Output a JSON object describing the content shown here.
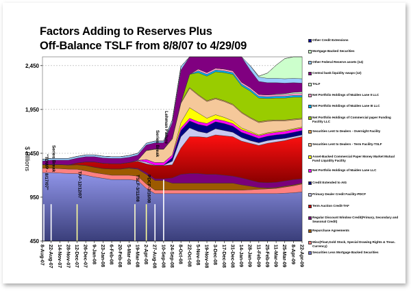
{
  "chart_data": {
    "type": "area",
    "title": "Factors Adding to Reserves Plus Off-Balance TSLF from 8/8/07 to 4/29/09",
    "title_lines": [
      "Factors Adding to Reserves Plus",
      "Off-Balance TSLF from 8/8/07 to 4/29/09"
    ],
    "ylabel": "$ Billions",
    "xlabel": "",
    "ylim": [
      450,
      2550
    ],
    "yticks": [
      450,
      950,
      1450,
      1950,
      2450
    ],
    "ytick_labels": [
      "450",
      "950",
      "1,450",
      "1,950",
      "2,450"
    ],
    "grid": true,
    "legend_position": "right",
    "x_tick_labels": [
      "8-Aug-07",
      "22-Aug-07",
      "14-Nov-07",
      "28-Nov-07",
      "12-Dec-07",
      "26-Dec-07",
      "9-Jan-08",
      "23-Jan-08",
      "6-Feb-08",
      "20-Feb-08",
      "5-Mar-08",
      "19-Mar-08",
      "2-Apr-08",
      "27-Aug-08",
      "10-Sep-08",
      "24-Sep-08",
      "8-Oct-08",
      "22-Oct-08",
      "5-Nov-08",
      "19-Nov-08",
      "3-Dec-08",
      "17-Dec-08",
      "31-Dec-08",
      "14-Jan-09",
      "28-Jan-09",
      "11-Feb-09",
      "25-Feb-09",
      "11-Mar-09",
      "25-Mar-09",
      "8-Apr-09",
      "22-Apr-09"
    ],
    "annotations": [
      {
        "text": "\"TDWP - 8/17/07\"",
        "at": "8-Aug-07"
      },
      {
        "text": "Series Break",
        "at": "22-Aug-07"
      },
      {
        "text": "TAF-12/12/07",
        "at": "12-Dec-07"
      },
      {
        "text": "TSLF-3/11/08",
        "at": "19-Mar-08"
      },
      {
        "text": "PDCF-3/16/08",
        "at": "2-Apr-08"
      },
      {
        "text": "Series Break",
        "at": "27-Aug-08"
      },
      {
        "text": "Lehman Failure",
        "at": "10-Sep-08"
      }
    ],
    "series": [
      {
        "name": "Securities Less Mortgage Backed Securities",
        "color": "#6f74c8",
        "values": [
          780,
          780,
          775,
          770,
          768,
          750,
          730,
          715,
          700,
          700,
          700,
          690,
          600,
          540,
          540,
          540,
          540,
          540,
          540,
          540,
          540,
          540,
          540,
          540,
          540,
          540,
          540,
          540,
          545,
          550,
          560
        ]
      },
      {
        "name": "Misc(Float, Gold Stock, Special Drawing Rights & Treas. Currency)",
        "color": "#ff8080",
        "values": [
          50,
          50,
          50,
          50,
          50,
          50,
          50,
          50,
          50,
          50,
          50,
          50,
          50,
          40,
          40,
          40,
          40,
          40,
          40,
          40,
          40,
          40,
          40,
          40,
          45,
          50,
          55,
          60,
          70,
          80,
          90
        ]
      },
      {
        "name": "Repurchase Agreements",
        "color": "#9c5a00",
        "values": [
          40,
          40,
          45,
          45,
          50,
          60,
          60,
          60,
          70,
          70,
          80,
          80,
          110,
          110,
          110,
          80,
          80,
          80,
          80,
          80,
          80,
          80,
          80,
          60,
          40,
          20,
          10,
          10,
          10,
          10,
          10
        ]
      },
      {
        "name": "Regular Discount Window Credit (Primary, Secondary and Seasonal Credit)",
        "color": "#7a007a",
        "values": [
          2,
          2,
          2,
          2,
          2,
          2,
          2,
          2,
          2,
          2,
          5,
          10,
          20,
          20,
          20,
          60,
          100,
          110,
          110,
          100,
          100,
          90,
          80,
          80,
          70,
          60,
          60,
          60,
          60,
          60,
          50
        ]
      },
      {
        "name": "Term Auction Credit-TAF",
        "color": "#cc0000",
        "values": [
          0,
          0,
          0,
          0,
          20,
          40,
          60,
          60,
          60,
          60,
          60,
          80,
          100,
          150,
          150,
          150,
          300,
          420,
          420,
          420,
          450,
          450,
          450,
          420,
          420,
          420,
          450,
          460,
          460,
          470,
          480
        ]
      },
      {
        "name": "Primary Dealer Credit Facility-PDCF",
        "color": "#c8c8f0",
        "values": [
          0,
          0,
          0,
          0,
          0,
          0,
          0,
          0,
          0,
          0,
          0,
          10,
          20,
          5,
          5,
          40,
          130,
          100,
          60,
          50,
          70,
          60,
          50,
          40,
          30,
          30,
          30,
          30,
          25,
          20,
          20
        ]
      },
      {
        "name": "Credit Extended to AIG",
        "color": "#000080",
        "values": [
          0,
          0,
          0,
          0,
          0,
          0,
          0,
          0,
          0,
          0,
          0,
          0,
          0,
          0,
          0,
          40,
          70,
          80,
          80,
          80,
          80,
          80,
          70,
          60,
          60,
          50,
          50,
          50,
          50,
          50,
          50
        ]
      },
      {
        "name": "Net Portfolio Holdings of Maiden Lane LLC",
        "color": "#ff00ff",
        "values": [
          0,
          0,
          0,
          0,
          0,
          0,
          0,
          0,
          0,
          0,
          0,
          0,
          30,
          30,
          30,
          30,
          30,
          30,
          30,
          30,
          30,
          30,
          30,
          30,
          30,
          30,
          30,
          30,
          30,
          30,
          30
        ]
      },
      {
        "name": "Asset-Backed Commercial Paper Money Market Mutual Fund Liquidity Facility",
        "color": "#ffff00",
        "values": [
          0,
          0,
          0,
          0,
          0,
          0,
          0,
          0,
          0,
          0,
          0,
          0,
          0,
          0,
          0,
          0,
          60,
          120,
          100,
          60,
          50,
          40,
          30,
          20,
          15,
          10,
          10,
          10,
          10,
          10,
          10
        ]
      },
      {
        "name": "Securities Lent to Dealers - Term Facility-TSLF",
        "color": "#f5c89a",
        "values": [
          0,
          0,
          0,
          0,
          0,
          0,
          0,
          0,
          0,
          0,
          0,
          0,
          100,
          150,
          150,
          180,
          220,
          220,
          200,
          190,
          180,
          180,
          180,
          170,
          150,
          140,
          130,
          120,
          110,
          100,
          90
        ]
      },
      {
        "name": "Securities Lent to Dealers - Overnight Facility",
        "color": "#e0a050",
        "values": [
          0,
          0,
          0,
          0,
          0,
          0,
          0,
          0,
          0,
          0,
          0,
          0,
          5,
          5,
          5,
          10,
          10,
          10,
          10,
          10,
          10,
          10,
          10,
          10,
          10,
          10,
          10,
          10,
          10,
          10,
          10
        ]
      },
      {
        "name": "Net Portfolio Holdings of Commercial paper Funding Facility LLC",
        "color": "#99cc00",
        "values": [
          0,
          0,
          0,
          0,
          0,
          0,
          0,
          0,
          0,
          0,
          0,
          0,
          0,
          0,
          0,
          0,
          0,
          150,
          250,
          280,
          300,
          320,
          340,
          300,
          300,
          270,
          250,
          250,
          250,
          250,
          240
        ]
      },
      {
        "name": "Net Portfolio Holdings of Maiden Lane III LLC",
        "color": "#00b0f0",
        "values": [
          0,
          0,
          0,
          0,
          0,
          0,
          0,
          0,
          0,
          0,
          0,
          0,
          0,
          0,
          0,
          0,
          0,
          0,
          20,
          20,
          20,
          20,
          20,
          20,
          20,
          20,
          20,
          20,
          20,
          20,
          20
        ]
      },
      {
        "name": "Net Portfolio Holdings of Maiden Lane II LLC",
        "color": "#ff99cc",
        "values": [
          0,
          0,
          0,
          0,
          0,
          0,
          0,
          0,
          0,
          0,
          0,
          0,
          0,
          0,
          0,
          0,
          0,
          0,
          20,
          20,
          20,
          20,
          20,
          20,
          20,
          20,
          20,
          20,
          20,
          20,
          20
        ]
      },
      {
        "name": "TALF",
        "color": "#ccffcc",
        "values": [
          0,
          0,
          0,
          0,
          0,
          0,
          0,
          0,
          0,
          0,
          0,
          0,
          0,
          0,
          0,
          0,
          0,
          0,
          0,
          0,
          0,
          0,
          0,
          0,
          0,
          0,
          0,
          5,
          10,
          15,
          20
        ]
      },
      {
        "name": "Central bank liquidity swaps (12)",
        "color": "#800080",
        "values": [
          40,
          50,
          50,
          55,
          55,
          60,
          60,
          60,
          60,
          60,
          60,
          60,
          60,
          70,
          70,
          180,
          370,
          540,
          560,
          580,
          560,
          540,
          520,
          360,
          200,
          150,
          140,
          130,
          120,
          110,
          100
        ]
      },
      {
        "name": "Other Federal Reserve assets (14)",
        "color": "#99ccff",
        "values": [
          20,
          20,
          20,
          20,
          20,
          20,
          20,
          20,
          20,
          20,
          20,
          20,
          20,
          20,
          20,
          30,
          40,
          50,
          50,
          50,
          50,
          50,
          50,
          50,
          50,
          50,
          50,
          50,
          50,
          50,
          50
        ]
      },
      {
        "name": "Mortgage Backed Securities",
        "color": "#ccffcc",
        "values": [
          0,
          0,
          0,
          0,
          0,
          0,
          0,
          0,
          0,
          0,
          0,
          0,
          0,
          0,
          0,
          0,
          0,
          0,
          0,
          0,
          0,
          0,
          0,
          0,
          0,
          10,
          60,
          150,
          230,
          300,
          330
        ]
      },
      {
        "name": "Other Credit Extensions",
        "color": "#000099",
        "values": [
          0,
          0,
          0,
          0,
          0,
          0,
          0,
          0,
          0,
          0,
          0,
          0,
          0,
          0,
          0,
          0,
          0,
          0,
          0,
          0,
          0,
          0,
          0,
          0,
          0,
          0,
          0,
          0,
          0,
          0,
          0
        ]
      }
    ]
  },
  "legend": [
    {
      "label": "Other Credit Extensions",
      "color": "#000099"
    },
    {
      "label": "Mortgage Backed Securities",
      "color": "#ccffcc"
    },
    {
      "label": "Other Federal Reserve assets (14)",
      "color": "#99ccff"
    },
    {
      "label": "Central bank liquidity swaps (12)",
      "color": "#800080"
    },
    {
      "label": "TALF",
      "color": "#ccffcc"
    },
    {
      "label": "Net Portfolio Holdings of Maiden Lane II LLC",
      "color": "#ff99cc"
    },
    {
      "label": "Net Portfolio Holdings of Maiden Lane III LLC",
      "color": "#00b0f0"
    },
    {
      "label": "Net Portfolio Holdings of Commercial paper Funding Facility LLC",
      "color": "#99cc00"
    },
    {
      "label": "Securities Lent to Dealers - Overnight Facility",
      "color": "#e0a050"
    },
    {
      "label": "Securities Lent to Dealers - Term Facility-TSLF",
      "color": "#f5c89a"
    },
    {
      "label": "Asset-Backed Commercial Paper Money Market Mutual Fund Liquidity Facility",
      "color": "#ffff00"
    },
    {
      "label": "Net Portfolio Holdings of Maiden Lane LLC",
      "color": "#ff00ff"
    },
    {
      "label": "Credit Extended to AIG",
      "color": "#000080"
    },
    {
      "label": "Primary Dealer Credit Facility-PDCF",
      "color": "#c8c8f0"
    },
    {
      "label": "Term Auction Credit-TAF",
      "color": "#cc0000"
    },
    {
      "label": "Regular Discount Window Credit(Primary, Secondary and Seasonal Credit)",
      "color": "#7a007a"
    },
    {
      "label": "Repurchase Agreements",
      "color": "#9c5a00"
    },
    {
      "label": "Misc(Float,Gold Stock, Special Drawing Rights & Treas. Currency)",
      "color": "#ff8080"
    },
    {
      "label": "Securities Less Mortgage Backed Securities",
      "color": "#6f74c8"
    }
  ]
}
